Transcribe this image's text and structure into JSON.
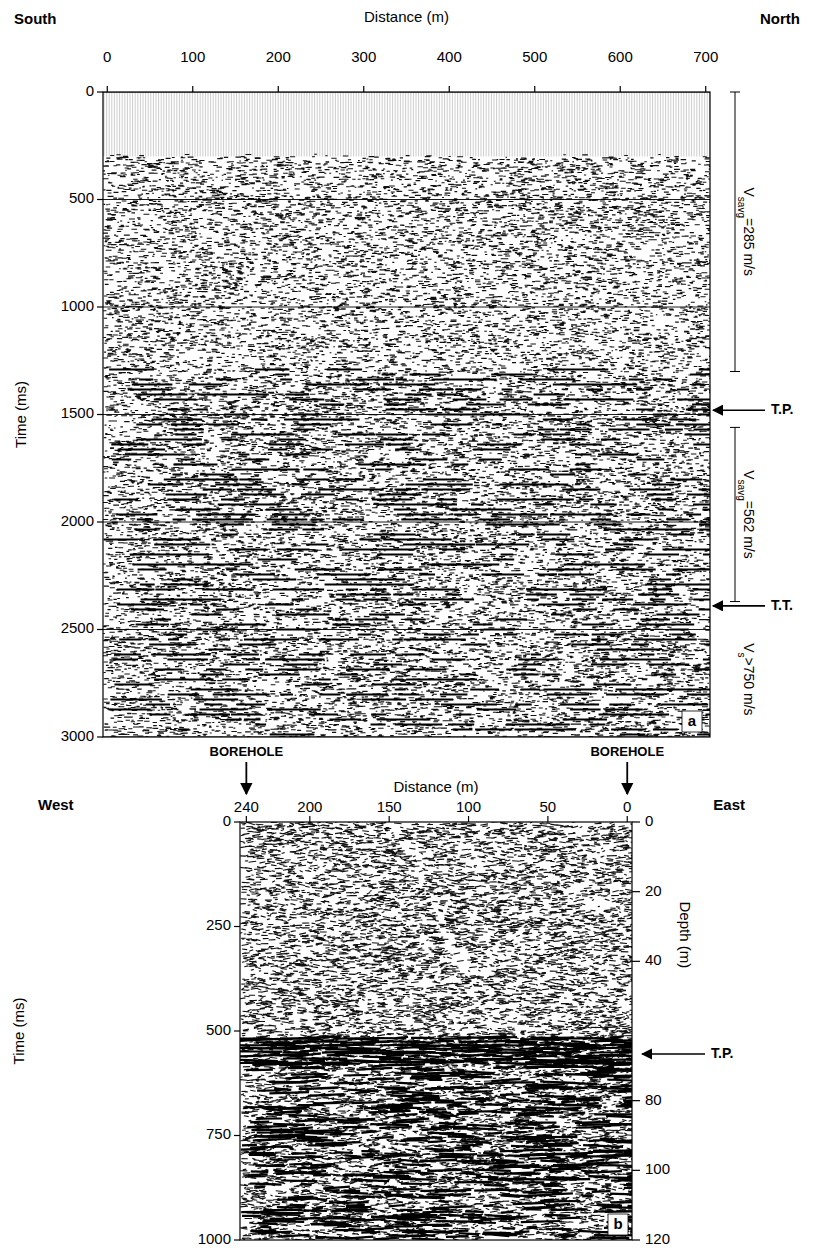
{
  "chart_data": [
    {
      "type": "seismic",
      "panel": "a",
      "x_label": "Distance (m)",
      "y_label": "Time (ms)",
      "left_label": "South",
      "right_label": "North",
      "xlim": [
        -5,
        705
      ],
      "xticks": [
        0,
        100,
        200,
        300,
        400,
        500,
        600,
        700
      ],
      "ylim": [
        0,
        3000
      ],
      "yticks": [
        0,
        500,
        1000,
        1500,
        2000,
        2500,
        3000
      ],
      "grid": true,
      "intervals": [
        {
          "label": "Vsavg=285 m/s",
          "from": 0,
          "to": 1300
        },
        {
          "label": "Vsavg=562 m/s",
          "from": 1560,
          "to": 2370
        }
      ],
      "bottom_label": "Vs>750 m/s",
      "annotations": [
        {
          "text": "T.P.",
          "y": 1480
        },
        {
          "text": "T.T.",
          "y": 2390
        }
      ]
    },
    {
      "type": "seismic",
      "panel": "b",
      "x_label": "Distance (m)",
      "y_label": "Time (ms)",
      "left_label": "West",
      "right_label": "East",
      "y2_label": "Depth (m)",
      "xlim": [
        244,
        -3
      ],
      "xticks": [
        240,
        200,
        150,
        100,
        50,
        0
      ],
      "ylim": [
        0,
        1000
      ],
      "yticks": [
        0,
        250,
        500,
        750,
        1000
      ],
      "y2lim": [
        0,
        120
      ],
      "y2ticks": [
        0,
        20,
        40,
        80,
        100,
        120
      ],
      "grid": false,
      "markers": [
        {
          "text": "BOREHOLE",
          "x": 240
        },
        {
          "text": "BOREHOLE",
          "x": 0
        }
      ],
      "annotations": [
        {
          "text": "T.P.",
          "y": 555
        }
      ]
    }
  ]
}
